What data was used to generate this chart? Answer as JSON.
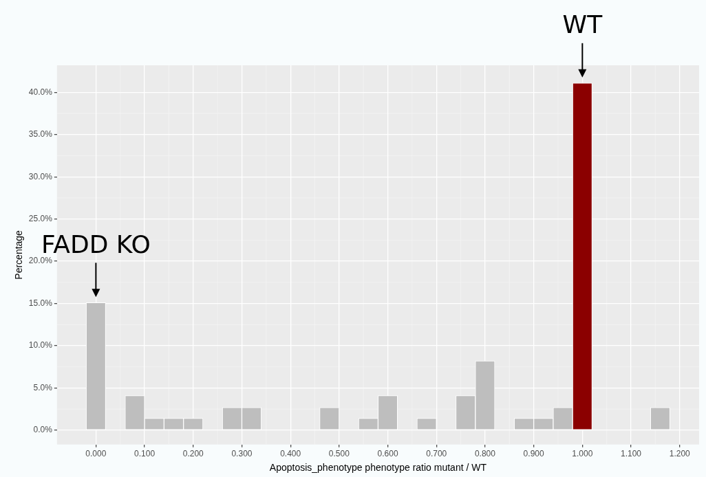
{
  "chart_data": {
    "type": "histogram",
    "xlabel": "Apoptosis_phenotype phenotype ratio mutant / WT",
    "ylabel": "Percentage",
    "bins": [
      -0.02,
      0.02,
      0.06,
      0.1,
      0.14,
      0.18,
      0.22,
      0.26,
      0.3,
      0.34,
      0.38,
      0.42,
      0.46,
      0.5,
      0.54,
      0.58,
      0.62,
      0.66,
      0.7,
      0.74,
      0.78,
      0.82,
      0.86,
      0.9,
      0.94,
      0.98,
      1.02,
      1.06,
      1.1,
      1.14,
      1.18,
      1.22
    ],
    "values": [
      15.1,
      0,
      4.1,
      1.4,
      1.4,
      1.4,
      0,
      2.7,
      2.7,
      0,
      0,
      0,
      2.7,
      0,
      1.4,
      4.1,
      0,
      1.4,
      0,
      4.1,
      8.2,
      0,
      1.4,
      1.4,
      2.7,
      41.1,
      0,
      0,
      0,
      2.7,
      0
    ],
    "colors": [
      "#bebebe",
      "#bebebe",
      "#bebebe",
      "#bebebe",
      "#bebebe",
      "#bebebe",
      "#bebebe",
      "#bebebe",
      "#bebebe",
      "#bebebe",
      "#bebebe",
      "#bebebe",
      "#bebebe",
      "#bebebe",
      "#bebebe",
      "#bebebe",
      "#bebebe",
      "#bebebe",
      "#bebebe",
      "#bebebe",
      "#bebebe",
      "#bebebe",
      "#bebebe",
      "#bebebe",
      "#bebebe",
      "#8b0000",
      "#bebebe",
      "#bebebe",
      "#bebebe",
      "#bebebe",
      "#bebebe"
    ],
    "xlim": [
      -0.08,
      1.24
    ],
    "xticks": [
      {
        "value": 0,
        "label": "0.000"
      },
      {
        "value": 0.1,
        "label": "0.100"
      },
      {
        "value": 0.2,
        "label": "0.200"
      },
      {
        "value": 0.3,
        "label": "0.300"
      },
      {
        "value": 0.4,
        "label": "0.400"
      },
      {
        "value": 0.5,
        "label": "0.500"
      },
      {
        "value": 0.6,
        "label": "0.600"
      },
      {
        "value": 0.7,
        "label": "0.700"
      },
      {
        "value": 0.8,
        "label": "0.800"
      },
      {
        "value": 0.9,
        "label": "0.900"
      },
      {
        "value": 1,
        "label": "1.000"
      },
      {
        "value": 1.1,
        "label": "1.100"
      },
      {
        "value": 1.2,
        "label": "1.200"
      }
    ],
    "ylim": [
      -1.7,
      43.2
    ],
    "yticks": [
      {
        "value": 0,
        "label": "0.0%"
      },
      {
        "value": 5,
        "label": "5.0%"
      },
      {
        "value": 10,
        "label": "10.0%"
      },
      {
        "value": 15,
        "label": "15.0%"
      },
      {
        "value": 20,
        "label": "20.0%"
      },
      {
        "value": 25,
        "label": "25.0%"
      },
      {
        "value": 30,
        "label": "30.0%"
      },
      {
        "value": 35,
        "label": "35.0%"
      },
      {
        "value": 40,
        "label": "40.0%"
      }
    ],
    "grid": true,
    "annotations": [
      {
        "text": "FADD KO",
        "x": 0,
        "y": 15.1
      },
      {
        "text": "WT",
        "x": 1,
        "y": 41.1
      }
    ]
  }
}
